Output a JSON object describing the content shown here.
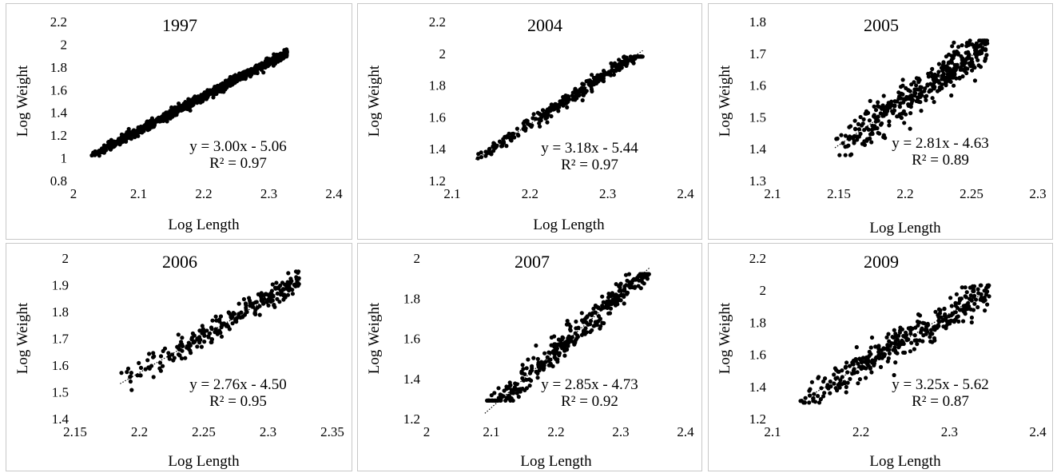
{
  "chart_data": [
    {
      "type": "scatter",
      "title": "1997",
      "xlabel": "Log Length",
      "ylabel": "Log Weight",
      "xlim": [
        2.0,
        2.4
      ],
      "xticks": [
        "2",
        "2.1",
        "2.2",
        "2.3",
        "2.4"
      ],
      "ylim": [
        0.8,
        2.2
      ],
      "yticks": [
        "0.8",
        "1",
        "1.2",
        "1.4",
        "1.6",
        "1.8",
        "2",
        "2.2"
      ],
      "trendline": {
        "slope": 3.0,
        "intercept": -5.06,
        "x_range": [
          2.028,
          2.328
        ]
      },
      "equation": "y = 3.00x - 5.06",
      "r2": "R² = 0.97",
      "points_summary": {
        "x_range": [
          2.028,
          2.328
        ],
        "y_range": [
          1.01,
          1.96
        ],
        "n_approx": 900
      }
    },
    {
      "type": "scatter",
      "title": "2004",
      "xlabel": "Log Length",
      "ylabel": "Log Weight",
      "xlim": [
        2.1,
        2.4
      ],
      "xticks": [
        "2.1",
        "2.2",
        "2.3",
        "2.4"
      ],
      "ylim": [
        1.2,
        2.2
      ],
      "yticks": [
        "1.2",
        "1.4",
        "1.6",
        "1.8",
        "2",
        "2.2"
      ],
      "trendline": {
        "slope": 3.18,
        "intercept": -5.44,
        "x_range": [
          2.13,
          2.345
        ]
      },
      "equation": "y = 3.18x - 5.44",
      "r2": "R² = 0.97",
      "points_summary": {
        "x_range": [
          2.13,
          2.345
        ],
        "y_range": [
          1.34,
          1.98
        ],
        "n_approx": 300
      }
    },
    {
      "type": "scatter",
      "title": "2005",
      "xlabel": "Log Length",
      "ylabel": "Log Weight",
      "xlim": [
        2.1,
        2.3
      ],
      "xticks": [
        "2.1",
        "2.15",
        "2.2",
        "2.25",
        "2.3"
      ],
      "ylim": [
        1.3,
        1.8
      ],
      "yticks": [
        "1.3",
        "1.4",
        "1.5",
        "1.6",
        "1.7",
        "1.8"
      ],
      "trendline": {
        "slope": 2.81,
        "intercept": -4.63,
        "x_range": [
          2.147,
          2.262
        ]
      },
      "equation": "y = 2.81x - 4.63",
      "r2": "R² = 0.89",
      "points_summary": {
        "x_range": [
          2.147,
          2.262
        ],
        "y_range": [
          1.38,
          1.74
        ],
        "n_approx": 400
      }
    },
    {
      "type": "scatter",
      "title": "2006",
      "xlabel": "Log Length",
      "ylabel": "Log Weight",
      "xlim": [
        2.15,
        2.35
      ],
      "xticks": [
        "2.15",
        "2.2",
        "2.25",
        "2.3",
        "2.35"
      ],
      "ylim": [
        1.4,
        2.0
      ],
      "yticks": [
        "1.4",
        "1.5",
        "1.6",
        "1.7",
        "1.8",
        "1.9",
        "2"
      ],
      "trendline": {
        "slope": 2.76,
        "intercept": -4.5,
        "x_range": [
          2.185,
          2.325
        ]
      },
      "equation": "y = 2.76x - 4.50",
      "r2": "R² = 0.95",
      "points_summary": {
        "x_range": [
          2.185,
          2.325
        ],
        "y_range": [
          1.48,
          1.95
        ],
        "n_approx": 250
      }
    },
    {
      "type": "scatter",
      "title": "2007",
      "xlabel": "Log Length",
      "ylabel": "Log Weight",
      "xlim": [
        2.0,
        2.4
      ],
      "xticks": [
        "2",
        "2.1",
        "2.2",
        "2.3",
        "2.4"
      ],
      "ylim": [
        1.2,
        2.0
      ],
      "yticks": [
        "1.2",
        "1.4",
        "1.6",
        "1.8",
        "2"
      ],
      "trendline": {
        "slope": 2.85,
        "intercept": -4.73,
        "x_range": [
          2.09,
          2.345
        ]
      },
      "equation": "y = 2.85x - 4.73",
      "r2": "R² = 0.92",
      "points_summary": {
        "x_range": [
          2.09,
          2.345
        ],
        "y_range": [
          1.29,
          1.92
        ],
        "n_approx": 350
      }
    },
    {
      "type": "scatter",
      "title": "2009",
      "xlabel": "Log Length",
      "ylabel": "Log Weight",
      "xlim": [
        2.1,
        2.4
      ],
      "xticks": [
        "2.1",
        "2.2",
        "2.3",
        "2.4"
      ],
      "ylim": [
        1.2,
        2.2
      ],
      "yticks": [
        "1.2",
        "1.4",
        "1.6",
        "1.8",
        "2",
        "2.2"
      ],
      "trendline": {
        "slope": 3.25,
        "intercept": -5.62,
        "x_range": [
          2.13,
          2.345
        ]
      },
      "equation": "y = 3.25x - 5.62",
      "r2": "R² = 0.87",
      "points_summary": {
        "x_range": [
          2.13,
          2.345
        ],
        "y_range": [
          1.3,
          2.03
        ],
        "n_approx": 350
      }
    }
  ]
}
